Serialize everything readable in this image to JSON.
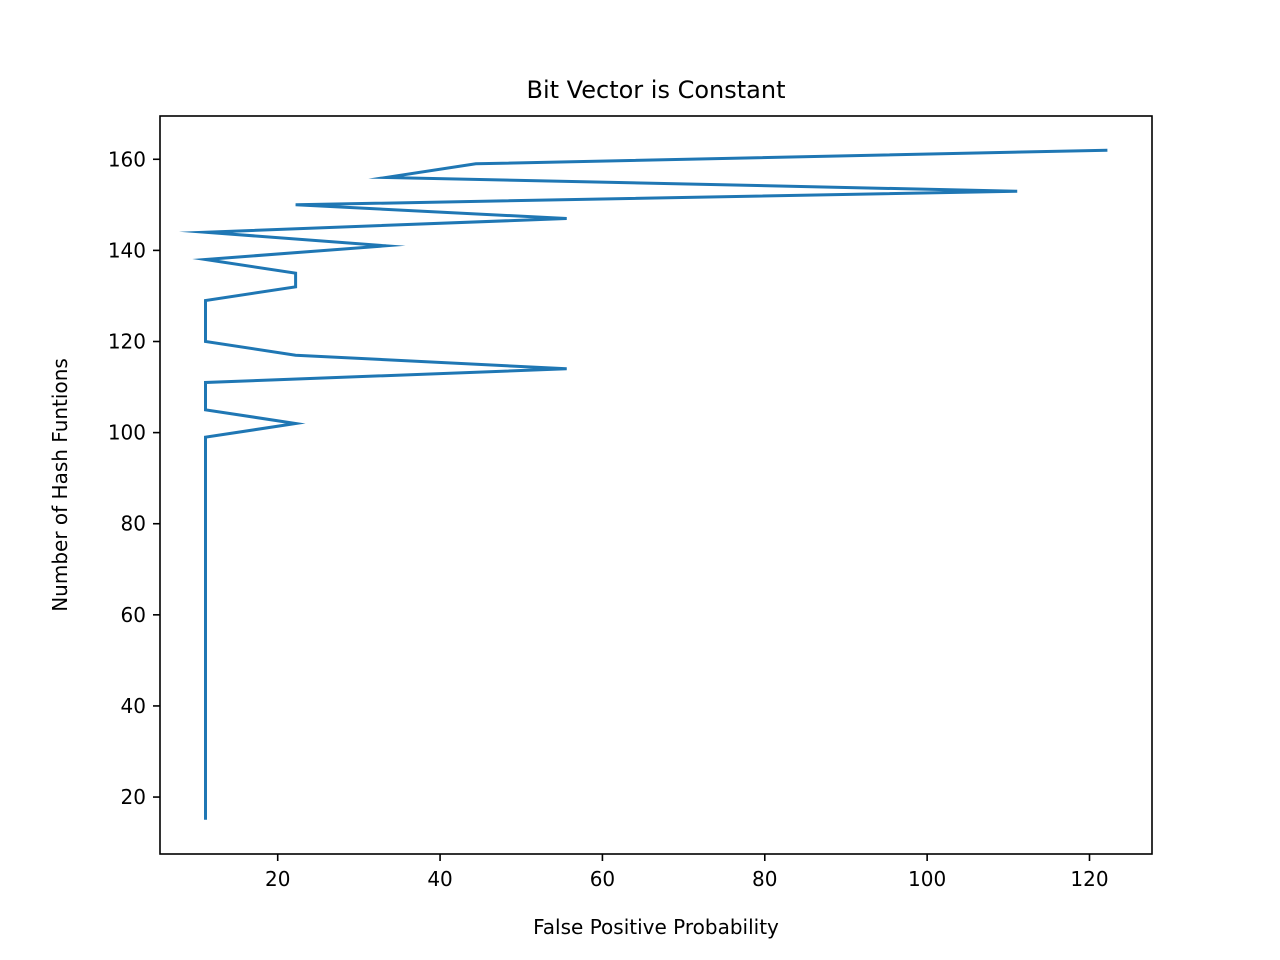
{
  "chart_data": {
    "type": "line",
    "title": "Bit Vector is Constant",
    "xlabel": "False Positive Probability",
    "ylabel": "Number of Hash Funtions",
    "xlim": [
      5.5,
      127.7
    ],
    "ylim": [
      7.5,
      169.5
    ],
    "xticks": [
      20,
      40,
      60,
      80,
      100,
      120
    ],
    "yticks": [
      20,
      40,
      60,
      80,
      100,
      120,
      140,
      160
    ],
    "grid": false,
    "series": [
      {
        "color": "#1f77b4",
        "x": [
          11.1,
          11.1,
          11.1,
          11.1,
          11.1,
          11.1,
          22.2,
          11.1,
          11.1,
          11.1,
          55.6,
          22.2,
          11.1,
          11.1,
          22.2,
          22.2,
          11.1,
          33.3,
          11.1,
          55.6,
          22.2,
          111.1,
          33.3,
          44.4,
          122.2
        ],
        "y": [
          15,
          40,
          60,
          80,
          96,
          99,
          102,
          105,
          108,
          111,
          114,
          117,
          120,
          129,
          132,
          135,
          138,
          141,
          144,
          147,
          150,
          153,
          156,
          159,
          162
        ]
      }
    ]
  }
}
